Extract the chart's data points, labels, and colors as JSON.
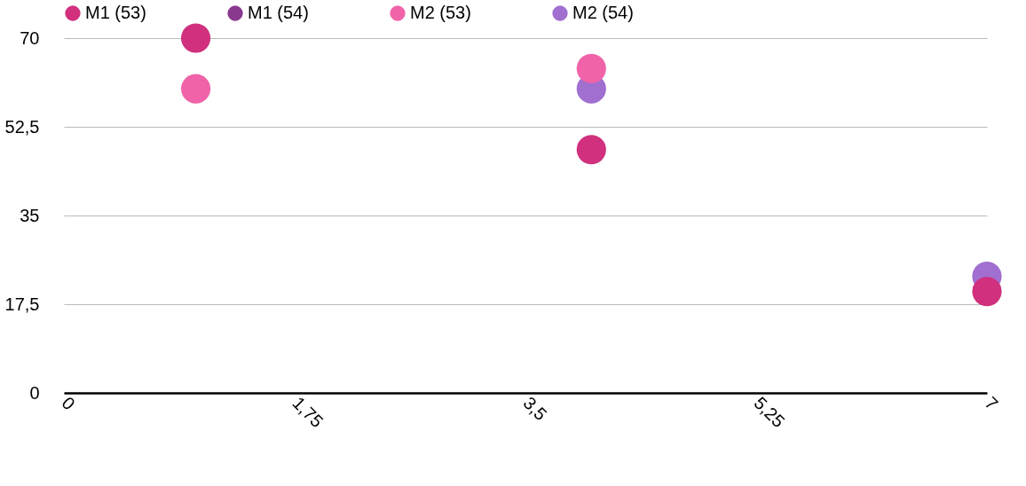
{
  "chart_data": {
    "type": "scatter",
    "x": [
      1,
      4,
      7
    ],
    "series": [
      {
        "name": "M1 (53)",
        "color": "#d0307e",
        "values": [
          70,
          48,
          20
        ]
      },
      {
        "name": "M1 (54)",
        "color": "#893a8e",
        "values": [
          null,
          null,
          null
        ]
      },
      {
        "name": "M2 (53)",
        "color": "#f063a9",
        "values": [
          60,
          64,
          null
        ]
      },
      {
        "name": "M2 (54)",
        "color": "#a06fcf",
        "values": [
          null,
          60,
          23
        ]
      }
    ],
    "xlim": [
      0,
      7
    ],
    "xticks": [
      0,
      {
        "value": 1.75,
        "label": "1,75"
      },
      {
        "value": 3.5,
        "label": "3,5"
      },
      {
        "value": 5.25,
        "label": "5,25"
      },
      7
    ],
    "ylim": [
      0,
      70
    ],
    "yticks": [
      0,
      {
        "value": 17.5,
        "label": "17,5"
      },
      35,
      {
        "value": 52.5,
        "label": "52,5"
      },
      70
    ],
    "grid": "y",
    "legend": "top",
    "marker": "circle"
  }
}
